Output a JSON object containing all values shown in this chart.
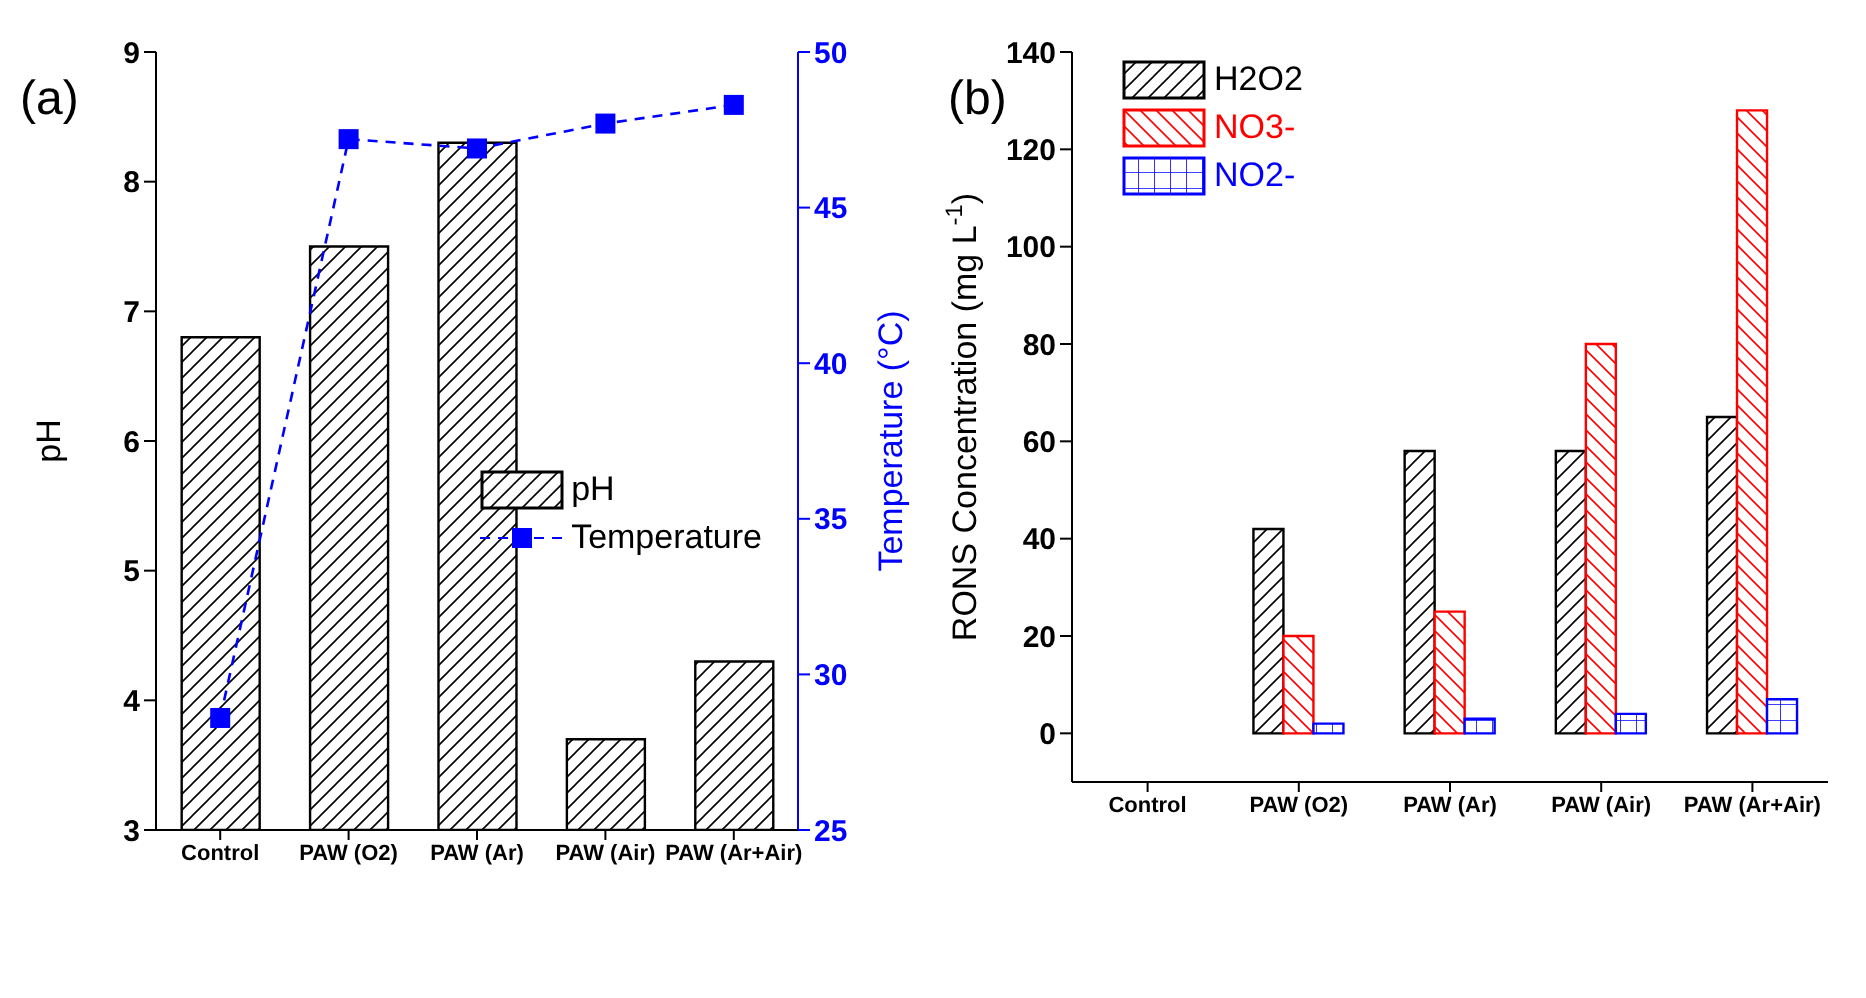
{
  "chart_data": [
    {
      "type": "bar",
      "categories": [
        "Control",
        "PAW (O2)",
        "PAW (Ar)",
        "PAW (Air)",
        "PAW (Ar+Air)"
      ],
      "ylabel": "pH",
      "y2label": "Temperature (°C)",
      "ylim": [
        3,
        9
      ],
      "yticks": [
        3,
        4,
        5,
        6,
        7,
        8,
        9
      ],
      "y2lim": [
        25,
        50
      ],
      "y2ticks": [
        25,
        30,
        35,
        40,
        45,
        50
      ],
      "legend": "right",
      "grid": false,
      "annotations": [
        "(a)"
      ],
      "series": [
        {
          "name": "pH",
          "color": "#000000",
          "values": [
            6.8,
            7.5,
            8.3,
            3.7,
            4.3
          ]
        },
        {
          "name": "Temperature",
          "type": "line",
          "axis": "y2",
          "color": "#0000ff",
          "marker": "square",
          "line_style": "dashed",
          "values": [
            28.6,
            47.2,
            46.9,
            47.7,
            48.3
          ]
        }
      ]
    },
    {
      "type": "bar",
      "categories": [
        "Control",
        "PAW (O2)",
        "PAW (Ar)",
        "PAW (Air)",
        "PAW (Ar+Air)"
      ],
      "ylabel": "RONS Concentration (mg L$^{-1}$)",
      "ylim": [
        -10,
        140
      ],
      "yticks": [
        0,
        20,
        40,
        60,
        80,
        100,
        120,
        140
      ],
      "legend": "top left",
      "grid": false,
      "annotations": [
        "(b)"
      ],
      "series": [
        {
          "name": "H2O2",
          "color": "#000000",
          "values": [
            0,
            42,
            58,
            58,
            65
          ]
        },
        {
          "name": "NO3-",
          "color": "#ff0000",
          "values": [
            0,
            20,
            25,
            80,
            128
          ]
        },
        {
          "name": "NO2-",
          "color": "#0000ff",
          "values": [
            0,
            2,
            3,
            4,
            7
          ]
        }
      ]
    }
  ]
}
